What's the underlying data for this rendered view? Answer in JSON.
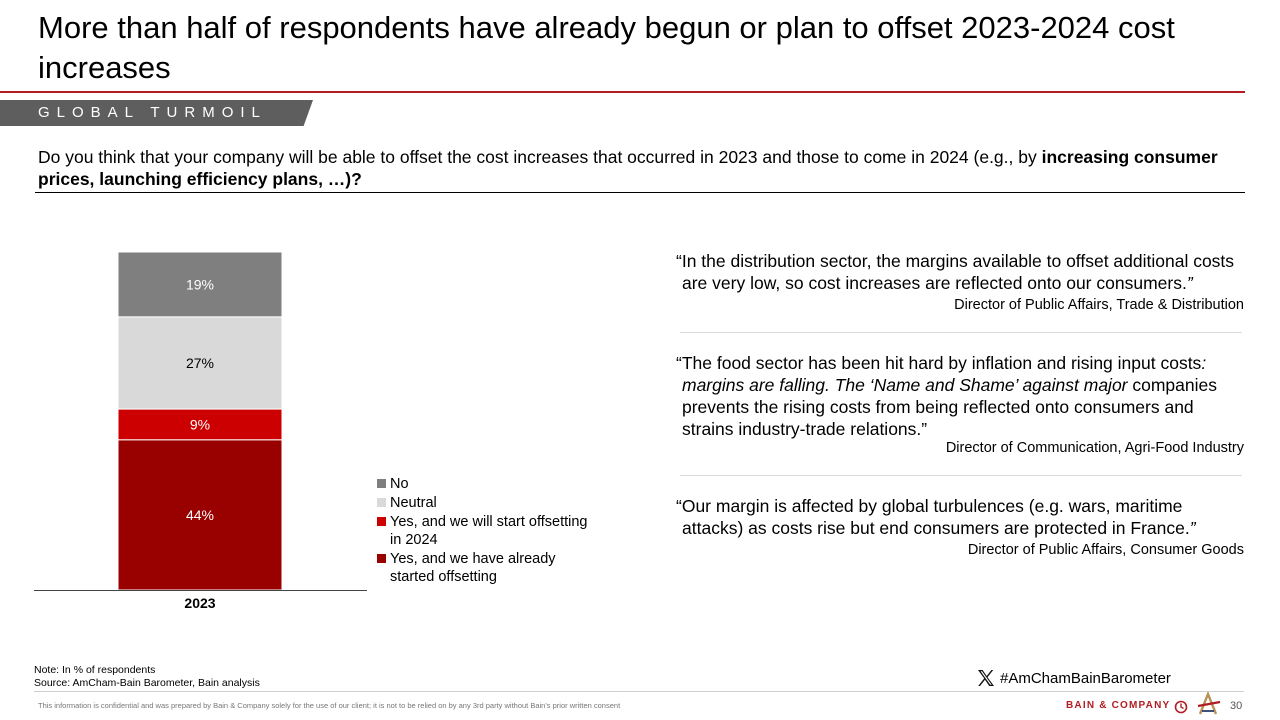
{
  "title": "More than half of respondents have already begun or plan to offset 2023-2024 cost increases",
  "section_tag": "GLOBAL TURMOIL",
  "question": {
    "normal": "Do you think that your company will be able to offset the cost increases that occurred in 2023 and those to come in 2024 (e.g., by ",
    "bold": "increasing consumer prices, launching efficiency plans, …)?"
  },
  "chart_data": {
    "type": "bar",
    "stacked": true,
    "categories": [
      "2023"
    ],
    "unit": "%",
    "series": [
      {
        "name": "Yes, and we have already started offsetting",
        "values": [
          44
        ],
        "label": "44%",
        "color": "#990000",
        "label_color": "#ffffff"
      },
      {
        "name": "Yes, and we will start offsetting in 2024",
        "values": [
          9
        ],
        "label": "9%",
        "color": "#cc0000",
        "label_color": "#ffffff"
      },
      {
        "name": "Neutral",
        "values": [
          27
        ],
        "label": "27%",
        "color": "#d9d9d9",
        "label_color": "#000000"
      },
      {
        "name": "No",
        "values": [
          19
        ],
        "label": "19%",
        "color": "#7f7f7f",
        "label_color": "#ffffff"
      }
    ],
    "legend_order": [
      "No",
      "Neutral",
      "Yes, and we will start offsetting in 2024",
      "Yes, and we have already started offsetting"
    ],
    "legend_position": "right"
  },
  "legend": [
    {
      "label": "No",
      "color": "#7f7f7f"
    },
    {
      "label": "Neutral",
      "color": "#d9d9d9"
    },
    {
      "label": "Yes, and we will start offsetting in 2024",
      "color": "#cc0000"
    },
    {
      "label": "Yes, and we have already started offsetting",
      "color": "#990000"
    }
  ],
  "quotes": [
    {
      "text_open": "“In the distribution sector, the margins available to offset additional costs are very low, so cost increases are reflected onto our consumers.",
      "text_italic": "",
      "text_close": "”",
      "author": "Director of Public Affairs, Trade & Distribution"
    },
    {
      "text_open": "“The food sector has been hit hard by inflation and rising input costs",
      "text_italic": ": margins are falling. The ‘Name and Shame’ against major",
      "text_close": " companies prevents the rising costs from being reflected onto consumers and strains industry-trade relations.”",
      "author": "Director of Communication, Agri-Food Industry"
    },
    {
      "text_open": "“Our margin is affected by global turbulences (e.g. wars, maritime attacks) as costs rise but end consumers are protected in France.",
      "text_italic": "",
      "text_close": "”",
      "author": "Director of Public Affairs, Consumer Goods"
    }
  ],
  "notes": {
    "note": "Note: In % of respondents",
    "source": "Source: AmCham-Bain Barometer, Bain analysis"
  },
  "disclaimer": "This information is confidential and was prepared by Bain & Company solely for the use of our client; it is not to be relied on by any 3rd party without Bain's prior written consent",
  "hashtag": "#AmChamBainBarometer",
  "brand": "BAIN & COMPANY",
  "page_number": "30",
  "colors": {
    "accent": "#b01e23",
    "tag_bg": "#5e5e5e"
  },
  "icons": [
    "x-logo-icon",
    "bain-seal-icon",
    "amcham-logo-icon"
  ]
}
